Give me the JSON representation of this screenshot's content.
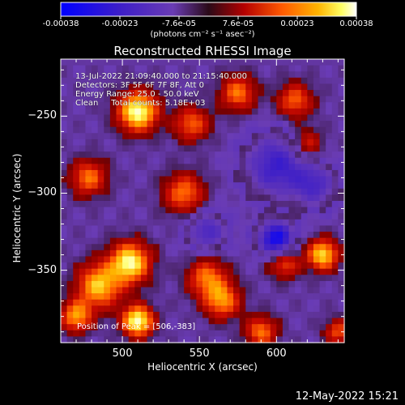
{
  "colorbar": {
    "tick_labels": [
      "-0.00038",
      "-0.00023",
      "-7.6e-05",
      "7.6e-05",
      "0.00023",
      "0.00038"
    ],
    "units_label": "(photons cm⁻² s⁻¹ asec⁻²)",
    "range": [
      -0.00038,
      0.00038
    ],
    "colors": [
      "#0000ff",
      "#3d1ec8",
      "#6a3cb4",
      "#2a0a18",
      "#b40000",
      "#ff5a00",
      "#ffb400",
      "#ffff64",
      "#ffffff"
    ]
  },
  "chart_data": {
    "type": "heatmap",
    "title": "Reconstructed RHESSI Image",
    "xlabel": "Heliocentric X (arcsec)",
    "ylabel": "Heliocentric Y (arcsec)",
    "xlim": [
      460,
      644
    ],
    "ylim": [
      -397,
      -213
    ],
    "x_ticks": [
      "500",
      "550",
      "600"
    ],
    "y_ticks": [
      "-250",
      "-300",
      "-350"
    ],
    "peak_position": [
      506,
      -383
    ],
    "blobs": [
      {
        "x": 510,
        "y": -247,
        "amp": 1.0,
        "s": 9
      },
      {
        "x": 505,
        "y": -345,
        "amp": 0.95,
        "s": 9
      },
      {
        "x": 485,
        "y": -360,
        "amp": 0.8,
        "s": 10
      },
      {
        "x": 510,
        "y": -383,
        "amp": 1.0,
        "s": 7
      },
      {
        "x": 470,
        "y": -380,
        "amp": 0.7,
        "s": 7
      },
      {
        "x": 478,
        "y": -290,
        "amp": 0.6,
        "s": 8
      },
      {
        "x": 540,
        "y": -300,
        "amp": 0.6,
        "s": 9
      },
      {
        "x": 545,
        "y": -255,
        "amp": 0.55,
        "s": 8
      },
      {
        "x": 575,
        "y": -235,
        "amp": 0.6,
        "s": 8
      },
      {
        "x": 612,
        "y": -240,
        "amp": 0.55,
        "s": 8
      },
      {
        "x": 620,
        "y": -268,
        "amp": 0.45,
        "s": 7
      },
      {
        "x": 630,
        "y": -340,
        "amp": 0.85,
        "s": 7
      },
      {
        "x": 605,
        "y": -345,
        "amp": 0.55,
        "s": 7
      },
      {
        "x": 555,
        "y": -355,
        "amp": 0.6,
        "s": 9
      },
      {
        "x": 565,
        "y": -370,
        "amp": 0.65,
        "s": 8
      },
      {
        "x": 590,
        "y": -390,
        "amp": 0.6,
        "s": 7
      },
      {
        "x": 640,
        "y": -390,
        "amp": 0.5,
        "s": 6
      },
      {
        "x": 600,
        "y": -282,
        "amp": -0.6,
        "s": 14
      },
      {
        "x": 600,
        "y": -330,
        "amp": -0.9,
        "s": 8
      },
      {
        "x": 625,
        "y": -295,
        "amp": -0.45,
        "s": 10
      },
      {
        "x": 555,
        "y": -325,
        "amp": -0.5,
        "s": 9
      }
    ]
  },
  "annotations": {
    "time_range": "13-Jul-2022 21:09:40.000 to 21:15:40.000",
    "detectors": "Detectors: 3F 5F 6F 7F 8F, Att 0",
    "energy": "Energy Range: 25.0 - 50.0 keV",
    "clean": "Clean     Total counts: 5.18E+03",
    "peak": "Position of Peak = [506,-383]"
  },
  "footer": {
    "date": "12-May-2022 15:21"
  }
}
